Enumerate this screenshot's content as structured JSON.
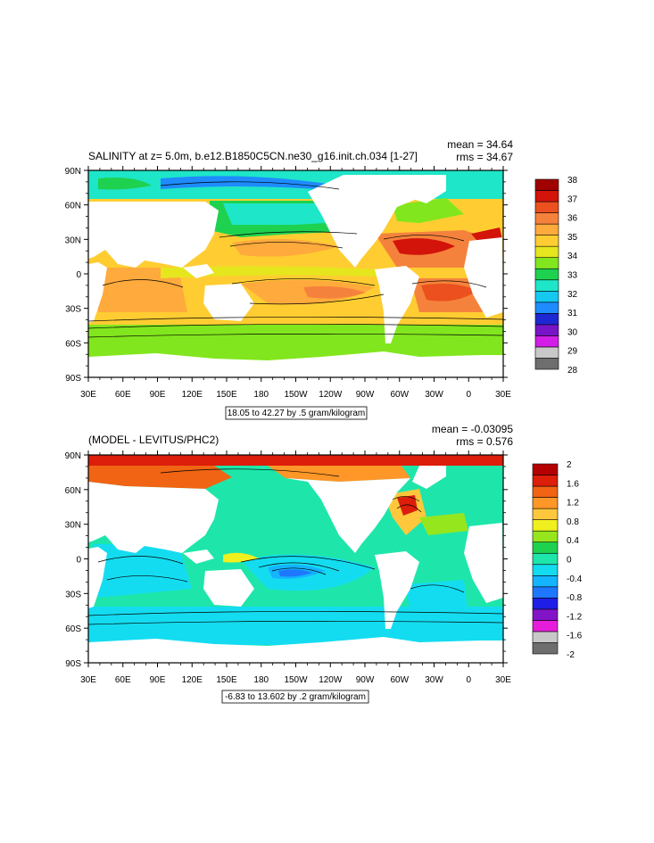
{
  "colors": {
    "land": "#ffffff",
    "contour_line": "#000000",
    "salinity_scale": [
      "#6e6e6e",
      "#c8c8c8",
      "#d21ee6",
      "#7814c8",
      "#1e28d2",
      "#1e8cff",
      "#14c8f0",
      "#1ee6c8",
      "#1ed250",
      "#82e61e",
      "#e6e61e",
      "#ffcd32",
      "#ffaa3c",
      "#f5823c",
      "#eb501e",
      "#d2140a",
      "#a00000"
    ],
    "diff_scale": [
      "#6e6e6e",
      "#c8c8c8",
      "#e61edc",
      "#8214c8",
      "#1e1ee6",
      "#1e78ff",
      "#14b4ff",
      "#14dcf0",
      "#1ee6aa",
      "#1ed250",
      "#96e61e",
      "#f0f01e",
      "#ffc83c",
      "#ff9628",
      "#f06414",
      "#dc1e0a",
      "#b40000"
    ]
  },
  "chart_data": [
    {
      "type": "heatmap",
      "title": "SALINITY at z=    5.0m, b.e12.B1850C5CN.ne30_g16.init.ch.034 [1-27]",
      "stat_mean": "mean = 34.64",
      "stat_rms": "rms = 34.67",
      "x_tick_labels": [
        "30E",
        "60E",
        "90E",
        "120E",
        "150E",
        "180",
        "150W",
        "120W",
        "90W",
        "60W",
        "30W",
        "0",
        "30E"
      ],
      "y_tick_labels": [
        "90N",
        "60N",
        "30N",
        "0",
        "30S",
        "60S",
        "90S"
      ],
      "xlim": [
        30,
        390
      ],
      "ylim": [
        -90,
        90
      ],
      "colorbar_labels": [
        "38",
        "37",
        "36",
        "35",
        "34",
        "33",
        "32",
        "31",
        "30",
        "29",
        "28"
      ],
      "colorbar_levels": [
        28,
        28.5,
        29,
        29.5,
        30,
        30.5,
        31,
        31.5,
        32,
        32.5,
        33,
        33.5,
        34,
        34.5,
        35,
        35.5,
        36,
        36.5,
        37,
        37.5,
        38
      ],
      "contour_info": "18.05 to 42.27 by .5 gram/kilogram"
    },
    {
      "type": "heatmap",
      "title": "(MODEL - LEVITUS/PHC2)",
      "stat_mean": "mean = -0.03095",
      "stat_rms": "rms = 0.576",
      "x_tick_labels": [
        "30E",
        "60E",
        "90E",
        "120E",
        "150E",
        "180",
        "150W",
        "120W",
        "90W",
        "60W",
        "30W",
        "0",
        "30E"
      ],
      "y_tick_labels": [
        "90N",
        "60N",
        "30N",
        "0",
        "30S",
        "60S",
        "90S"
      ],
      "xlim": [
        30,
        390
      ],
      "ylim": [
        -90,
        90
      ],
      "colorbar_labels": [
        "2",
        "1.6",
        "1.2",
        "0.8",
        "0.4",
        "0",
        "-0.4",
        "-0.8",
        "-1.2",
        "-1.6",
        "-2"
      ],
      "colorbar_levels": [
        -2,
        -1.8,
        -1.6,
        -1.4,
        -1.2,
        -1,
        -0.8,
        -0.6,
        -0.4,
        -0.2,
        0,
        0.2,
        0.4,
        0.6,
        0.8,
        1,
        1.2,
        1.4,
        1.6,
        1.8,
        2
      ],
      "contour_info": "-6.83 to 13.602 by .2 gram/kilogram"
    }
  ]
}
